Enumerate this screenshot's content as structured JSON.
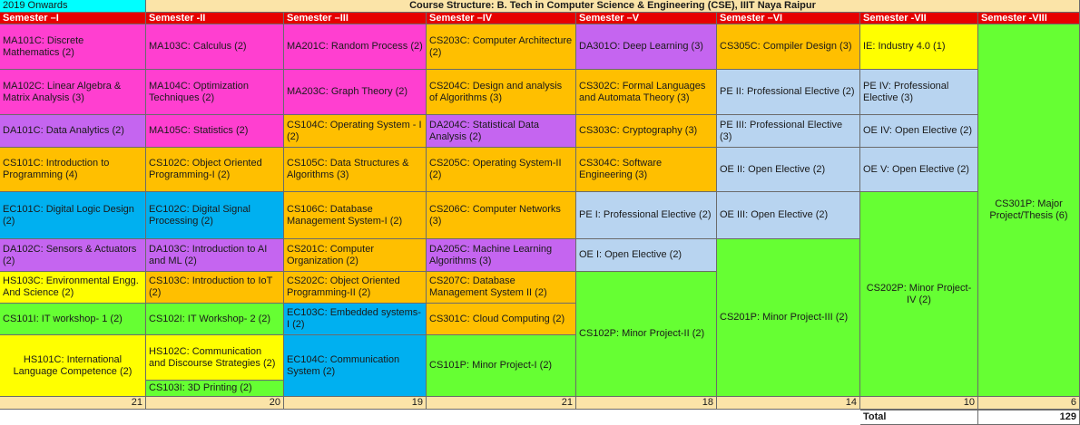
{
  "header": {
    "onwards": "2019 Onwards",
    "title": "Course Structure: B. Tech in Computer Science & Engineering (CSE), IIIT Naya Raipur"
  },
  "semesters": [
    "Semester –I",
    "Semester -II",
    "Semester –III",
    "Semester –IV",
    "Semester –V",
    "Semester –VI",
    "Semester -VII",
    "Semester -VIII"
  ],
  "sem1": [
    "MA101C: Discrete Mathematics (2)",
    "MA102C:  Linear Algebra & Matrix Analysis (3)",
    "DA101C: Data Analytics (2)",
    "CS101C: Introduction to Programming  (4)",
    "EC101C: Digital Logic Design (2)",
    "DA102C: Sensors & Actuators (2)",
    "HS103C: Environmental Engg. And Science (2)",
    "CS101I: IT workshop- 1 (2)",
    "HS101C: International Language Competence (2)"
  ],
  "sem2": [
    "MA103C: Calculus (2)",
    "MA104C: Optimization Techniques (2)",
    "MA105C: Statistics (2)",
    "CS102C: Object Oriented Programming-I (2)",
    "EC102C: Digital Signal Processing (2)",
    "DA103C: Introduction to AI and ML (2)",
    "CS103C: Introduction to IoT (2)",
    "CS102I: IT  Workshop- 2 (2)",
    "HS102C: Communication and Discourse Strategies (2)",
    "CS103I: 3D Printing (2)"
  ],
  "sem3": [
    "MA201C: Random Process (2)",
    "MA203C: Graph Theory (2)",
    "CS104C: Operating System - I (2)",
    "CS105C: Data Structures & Algorithms (3)",
    "CS106C: Database Management System-I (2)",
    "CS201C: Computer Organization (2)",
    "CS202C: Object Oriented Programming-II  (2)",
    "EC103C: Embedded systems-I (2)",
    "EC104C: Communication System (2)"
  ],
  "sem4": [
    "CS203C: Computer Architecture (2)",
    "CS204C: Design and analysis of Algorithms (3)",
    "DA204C:  Statistical Data Analysis (2)",
    "CS205C: Operating System-II (2)",
    "CS206C: Computer Networks (3)",
    "DA205C: Machine Learning Algorithms (3)",
    "CS207C: Database Management System II (2)",
    "CS301C: Cloud Computing (2)",
    "CS101P: Minor Project-I (2)"
  ],
  "sem5": [
    "DA301O: Deep Learning (3)",
    "CS302C: Formal Languages and Automata Theory (3)",
    "CS303C: Cryptography (3)",
    "CS304C: Software Engineering (3)",
    "PE  I: Professional Elective (2)",
    "OE I: Open Elective (2)",
    "CS102P: Minor Project-II (2)"
  ],
  "sem6": [
    "CS305C: Compiler Design (3)",
    "PE II: Professional Elective (2)",
    "PE  III: Professional Elective (3)",
    "OE II: Open Elective  (2)",
    "OE III: Open Elective  (2)",
    "CS201P: Minor Project-III (2)"
  ],
  "sem7": [
    "IE: Industry 4.0 (1)",
    "PE  IV: Professional Elective  (3)",
    "OE IV: Open Elective (2)",
    "OE V: Open Elective (2)",
    "CS202P: Minor Project-IV (2)"
  ],
  "sem8": [
    "CS301P: Major Project/Thesis (6)"
  ],
  "totals": [
    "21",
    "20",
    "19",
    "21",
    "18",
    "14",
    "10",
    "6"
  ],
  "grand_total": {
    "label": "Total",
    "value": "129"
  }
}
